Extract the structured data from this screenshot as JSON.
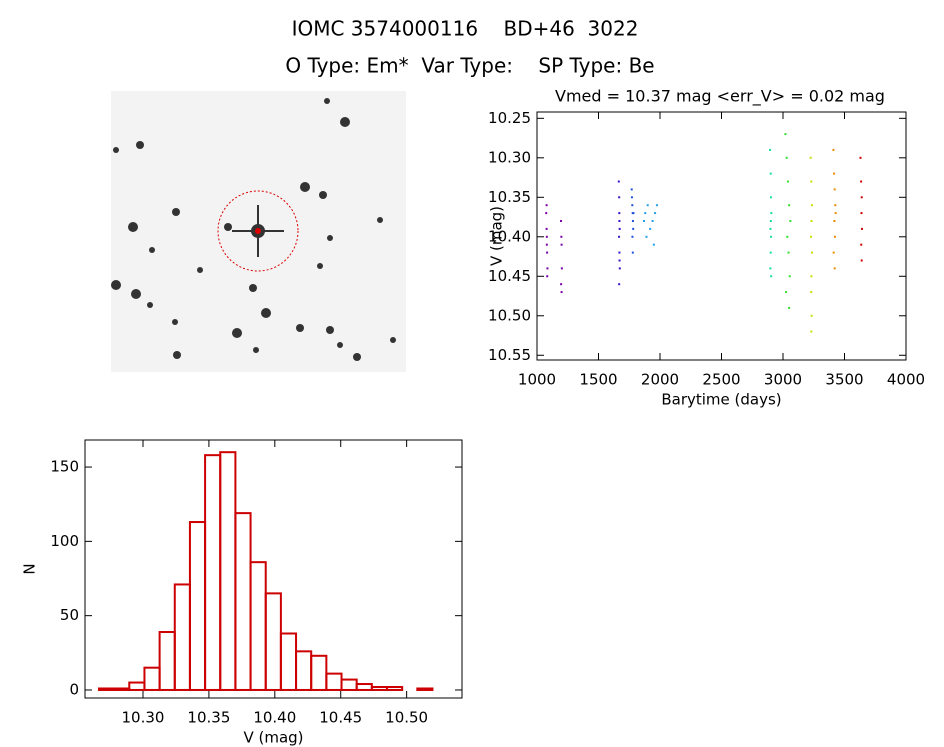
{
  "title": "IOMC 3574000116    BD+46  3022",
  "subtitle": "O Type: Em*  Var Type:    SP Type: Be",
  "chart_data": [
    {
      "type": "scatter",
      "title": "Vmed = 10.37 mag <err_V> = 0.02 mag",
      "x_label": "Barytime (days)",
      "y_label": "V (mag)",
      "xlim": [
        1000,
        4000
      ],
      "xticks": [
        1000,
        1500,
        2000,
        2500,
        3000,
        3500,
        4000
      ],
      "ylim": [
        10.556,
        10.242
      ],
      "yticks": [
        10.25,
        {
          "value": 10.3,
          "label": "10.30"
        },
        10.35,
        {
          "value": 10.4,
          "label": "10.40"
        },
        10.45,
        {
          "value": 10.5,
          "label": "10.50"
        },
        10.55
      ],
      "series": [
        {
          "color": "#7a00a8",
          "x": [
            1075,
            1078,
            1080,
            1082,
            1085,
            1080,
            1078,
            1083,
            1195,
            1198,
            1200,
            1202,
            1196,
            1200
          ],
          "values": [
            10.37,
            10.39,
            10.41,
            10.42,
            10.44,
            10.4,
            10.36,
            10.45,
            10.38,
            10.4,
            10.41,
            10.44,
            10.46,
            10.47
          ]
        },
        {
          "color": "#3a10c8",
          "x": [
            1665,
            1668,
            1670,
            1672,
            1667,
            1670,
            1669,
            1671,
            1673,
            1668
          ],
          "values": [
            10.33,
            10.35,
            10.38,
            10.39,
            10.4,
            10.42,
            10.37,
            10.43,
            10.44,
            10.46
          ]
        },
        {
          "color": "#1f50e0",
          "x": [
            1770,
            1775,
            1778,
            1780,
            1782,
            1776,
            1779,
            1784,
            1772
          ],
          "values": [
            10.34,
            10.36,
            10.37,
            10.38,
            10.39,
            10.4,
            10.42,
            10.37,
            10.35
          ]
        },
        {
          "color": "#20a0e8",
          "x": [
            1870,
            1880,
            1900,
            1920,
            1940,
            1960,
            1975,
            1890,
            1950
          ],
          "values": [
            10.38,
            10.37,
            10.36,
            10.39,
            10.38,
            10.37,
            10.36,
            10.4,
            10.41
          ]
        },
        {
          "color": "#10e0a0",
          "x": [
            2895,
            2900,
            2902,
            2905,
            2898,
            2903,
            2900,
            2897,
            2904,
            2901
          ],
          "values": [
            10.29,
            10.32,
            10.35,
            10.37,
            10.39,
            10.4,
            10.42,
            10.44,
            10.45,
            10.38
          ]
        },
        {
          "color": "#30e030",
          "x": [
            3020,
            3030,
            3040,
            3050,
            3060,
            3035,
            3045,
            3055,
            3025,
            3050
          ],
          "values": [
            10.27,
            10.3,
            10.33,
            10.36,
            10.38,
            10.4,
            10.42,
            10.45,
            10.47,
            10.49
          ]
        },
        {
          "color": "#c8e000",
          "x": [
            3225,
            3230,
            3235,
            3232,
            3228,
            3236,
            3231,
            3229,
            3233,
            3230
          ],
          "values": [
            10.3,
            10.33,
            10.36,
            10.38,
            10.4,
            10.42,
            10.45,
            10.47,
            10.5,
            10.52
          ]
        },
        {
          "color": "#e88a00",
          "x": [
            3410,
            3415,
            3420,
            3425,
            3418,
            3422,
            3412,
            3428,
            3420
          ],
          "values": [
            10.29,
            10.32,
            10.34,
            10.36,
            10.38,
            10.4,
            10.42,
            10.37,
            10.44
          ]
        },
        {
          "color": "#d00000",
          "x": [
            3630,
            3635,
            3640,
            3638,
            3642,
            3636,
            3640
          ],
          "values": [
            10.3,
            10.33,
            10.35,
            10.37,
            10.39,
            10.41,
            10.43
          ]
        }
      ]
    },
    {
      "type": "histogram",
      "x_label": "V (mag)",
      "y_label": "N",
      "color": "#cc0000",
      "xlim": [
        10.256,
        10.542
      ],
      "xticks": [
        {
          "value": 10.3,
          "label": "10.30"
        },
        10.35,
        {
          "value": 10.4,
          "label": "10.40"
        },
        10.45,
        {
          "value": 10.5,
          "label": "10.50"
        }
      ],
      "ylim": [
        -5.4,
        168.2
      ],
      "yticks": [
        0,
        50,
        100,
        150
      ],
      "bins": [
        10.2666,
        10.2781,
        10.2896,
        10.3011,
        10.3126,
        10.3241,
        10.3356,
        10.3471,
        10.3586,
        10.3701,
        10.3816,
        10.3931,
        10.4046,
        10.4161,
        10.4276,
        10.4391,
        10.4506,
        10.4621,
        10.4736,
        10.4851,
        10.4966,
        10.5081,
        10.5196
      ],
      "values": [
        1,
        1,
        5,
        15,
        39,
        71,
        113,
        158,
        160,
        119,
        86,
        65,
        38,
        26,
        23,
        11,
        7,
        4,
        2,
        2,
        0,
        1
      ]
    }
  ]
}
